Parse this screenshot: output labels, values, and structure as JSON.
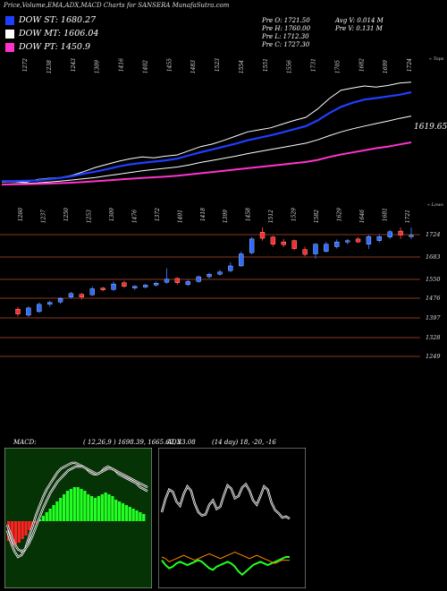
{
  "header": {
    "title": "Price,Volume,EMA,ADX,MACD Charts for SANSERA MunafaSutra.com",
    "legend": [
      {
        "label": "DOW ST: 1680.27",
        "color": "#1f3fff"
      },
      {
        "label": "DOW MT: 1606.04",
        "color": "#ffffff"
      },
      {
        "label": "DOW PT: 1450.9",
        "color": "#ff33cc"
      }
    ],
    "ohlc": {
      "open": "Pre   O: 1721.50",
      "high": "Pre   H: 1760.00",
      "low": "Pre   L: 1712.30",
      "close": "Pre   C: 1727.30",
      "avg_vol": "Avg V: 0.014  M",
      "prev_vol": "Pre   V: 0.131 M"
    }
  },
  "ema_panel": {
    "top_labels": [
      "1272",
      "1238",
      "1243",
      "1309",
      "1416",
      "1402",
      "1455",
      "1483",
      "1523",
      "1554",
      "1551",
      "1556",
      "1731",
      "1705",
      "1682",
      "1699",
      "1724"
    ],
    "corner_label": "« Tops",
    "last_value": "1619.65",
    "chart_data": {
      "type": "line",
      "series": [
        {
          "values": [
            1250,
            1252,
            1248,
            1262,
            1268,
            1272,
            1282,
            1300,
            1320,
            1335,
            1350,
            1362,
            1370,
            1366,
            1374,
            1380,
            1400,
            1420,
            1432,
            1450,
            1470,
            1490,
            1500,
            1510,
            1528,
            1545,
            1560,
            1600,
            1650,
            1690,
            1700,
            1710,
            1705,
            1712,
            1724,
            1728
          ],
          "color": "#ffffff"
        },
        {
          "values": [
            1255,
            1255,
            1256,
            1258,
            1264,
            1270,
            1278,
            1290,
            1300,
            1312,
            1325,
            1335,
            1342,
            1348,
            1354,
            1362,
            1378,
            1393,
            1406,
            1420,
            1434,
            1450,
            1462,
            1474,
            1488,
            1503,
            1518,
            1545,
            1580,
            1610,
            1630,
            1645,
            1652,
            1660,
            1668,
            1680
          ],
          "color": "#1f3fff"
        },
        {
          "values": [
            1240,
            1242,
            1244,
            1246,
            1250,
            1255,
            1260,
            1266,
            1272,
            1280,
            1288,
            1296,
            1304,
            1310,
            1316,
            1322,
            1332,
            1344,
            1354,
            1364,
            1374,
            1386,
            1396,
            1406,
            1416,
            1426,
            1436,
            1452,
            1472,
            1490,
            1505,
            1518,
            1530,
            1542,
            1555,
            1566
          ],
          "color": "#ffffff"
        },
        {
          "values": [
            1238,
            1239,
            1240,
            1241,
            1243,
            1245,
            1247,
            1250,
            1254,
            1258,
            1262,
            1266,
            1270,
            1273,
            1276,
            1280,
            1286,
            1292,
            1298,
            1304,
            1310,
            1316,
            1322,
            1328,
            1334,
            1340,
            1346,
            1356,
            1370,
            1382,
            1392,
            1402,
            1412,
            1420,
            1430,
            1440
          ],
          "color": "#ff33cc"
        }
      ]
    }
  },
  "candle_panel": {
    "top_labels": [
      "1260",
      "1237",
      "1250",
      "1253",
      "1309",
      "1476",
      "1372",
      "1401",
      "1418",
      "1399",
      "1458",
      "1512",
      "1529",
      "1582",
      "1629",
      "1646",
      "1681",
      "1721"
    ],
    "corner_label": "« Lows",
    "chart_data": {
      "type": "candlestick",
      "y_ticks": [
        1724,
        1683,
        1550,
        1476,
        1397,
        1328,
        1249
      ],
      "candles": [
        {
          "o": 1420,
          "c": 1400,
          "h": 1430,
          "l": 1390,
          "up": false
        },
        {
          "o": 1395,
          "c": 1425,
          "h": 1432,
          "l": 1388,
          "up": true
        },
        {
          "o": 1410,
          "c": 1440,
          "h": 1448,
          "l": 1405,
          "up": true
        },
        {
          "o": 1440,
          "c": 1448,
          "h": 1455,
          "l": 1430,
          "up": true
        },
        {
          "o": 1450,
          "c": 1465,
          "h": 1470,
          "l": 1442,
          "up": true
        },
        {
          "o": 1470,
          "c": 1485,
          "h": 1492,
          "l": 1463,
          "up": true
        },
        {
          "o": 1482,
          "c": 1470,
          "h": 1488,
          "l": 1460,
          "up": false
        },
        {
          "o": 1480,
          "c": 1505,
          "h": 1515,
          "l": 1475,
          "up": true
        },
        {
          "o": 1508,
          "c": 1500,
          "h": 1512,
          "l": 1494,
          "up": false
        },
        {
          "o": 1502,
          "c": 1525,
          "h": 1535,
          "l": 1496,
          "up": true
        },
        {
          "o": 1530,
          "c": 1515,
          "h": 1538,
          "l": 1508,
          "up": false
        },
        {
          "o": 1508,
          "c": 1515,
          "h": 1520,
          "l": 1500,
          "up": true
        },
        {
          "o": 1512,
          "c": 1520,
          "h": 1526,
          "l": 1506,
          "up": true
        },
        {
          "o": 1520,
          "c": 1528,
          "h": 1535,
          "l": 1514,
          "up": true
        },
        {
          "o": 1532,
          "c": 1545,
          "h": 1590,
          "l": 1526,
          "up": true
        },
        {
          "o": 1548,
          "c": 1530,
          "h": 1552,
          "l": 1522,
          "up": false
        },
        {
          "o": 1522,
          "c": 1535,
          "h": 1542,
          "l": 1516,
          "up": true
        },
        {
          "o": 1535,
          "c": 1555,
          "h": 1560,
          "l": 1530,
          "up": true
        },
        {
          "o": 1555,
          "c": 1565,
          "h": 1572,
          "l": 1548,
          "up": true
        },
        {
          "o": 1565,
          "c": 1575,
          "h": 1584,
          "l": 1560,
          "up": true
        },
        {
          "o": 1580,
          "c": 1600,
          "h": 1615,
          "l": 1574,
          "up": true
        },
        {
          "o": 1600,
          "c": 1650,
          "h": 1660,
          "l": 1596,
          "up": true
        },
        {
          "o": 1655,
          "c": 1712,
          "h": 1720,
          "l": 1648,
          "up": true
        },
        {
          "o": 1715,
          "c": 1740,
          "h": 1760,
          "l": 1705,
          "up": false
        },
        {
          "o": 1720,
          "c": 1690,
          "h": 1725,
          "l": 1680,
          "up": false
        },
        {
          "o": 1700,
          "c": 1688,
          "h": 1712,
          "l": 1678,
          "up": false
        },
        {
          "o": 1705,
          "c": 1672,
          "h": 1710,
          "l": 1665,
          "up": false
        },
        {
          "o": 1668,
          "c": 1648,
          "h": 1680,
          "l": 1640,
          "up": false
        },
        {
          "o": 1650,
          "c": 1690,
          "h": 1695,
          "l": 1630,
          "up": true
        },
        {
          "o": 1660,
          "c": 1690,
          "h": 1700,
          "l": 1655,
          "up": true
        },
        {
          "o": 1680,
          "c": 1700,
          "h": 1710,
          "l": 1672,
          "up": true
        },
        {
          "o": 1700,
          "c": 1705,
          "h": 1712,
          "l": 1690,
          "up": true
        },
        {
          "o": 1700,
          "c": 1712,
          "h": 1720,
          "l": 1695,
          "up": false
        },
        {
          "o": 1690,
          "c": 1722,
          "h": 1728,
          "l": 1670,
          "up": true
        },
        {
          "o": 1705,
          "c": 1722,
          "h": 1732,
          "l": 1698,
          "up": true
        },
        {
          "o": 1720,
          "c": 1742,
          "h": 1750,
          "l": 1712,
          "up": true
        },
        {
          "o": 1745,
          "c": 1728,
          "h": 1760,
          "l": 1712,
          "up": false
        },
        {
          "o": 1722,
          "c": 1727,
          "h": 1760,
          "l": 1712,
          "up": true
        }
      ]
    }
  },
  "macd_panel": {
    "label": "MACD:",
    "values": "( 12,26,9 ) 1698.39,  1665.62,  33.08",
    "chart_data": {
      "type": "bar",
      "histogram": [
        -22,
        -28,
        -26,
        -24,
        -20,
        -16,
        -10,
        -6,
        -2,
        2,
        6,
        10,
        14,
        18,
        22,
        26,
        30,
        34,
        36,
        38,
        38,
        36,
        34,
        30,
        28,
        26,
        28,
        30,
        32,
        30,
        28,
        24,
        22,
        20,
        18,
        16,
        14,
        12,
        10,
        8
      ],
      "macd_line": [
        -10,
        -22,
        -32,
        -38,
        -36,
        -30,
        -18,
        -6,
        6,
        16,
        26,
        34,
        40,
        46,
        52,
        56,
        58,
        60,
        62,
        62,
        60,
        58,
        56,
        52,
        50,
        50,
        52,
        56,
        58,
        56,
        54,
        50,
        48,
        46,
        44,
        42,
        40,
        36,
        34,
        32
      ],
      "signal_line": [
        -4,
        -14,
        -24,
        -30,
        -32,
        -30,
        -24,
        -16,
        -6,
        4,
        14,
        22,
        30,
        36,
        42,
        46,
        50,
        54,
        56,
        58,
        58,
        58,
        56,
        54,
        52,
        50,
        52,
        54,
        56,
        56,
        54,
        52,
        50,
        48,
        46,
        44,
        42,
        40,
        38,
        36
      ]
    }
  },
  "adx_panel": {
    "label": "ADX",
    "values": "(14  day) 18,  -20,  -16",
    "chart_data": {
      "type": "line",
      "series": [
        {
          "values": [
            30,
            55,
            72,
            68,
            50,
            42,
            64,
            78,
            70,
            46,
            30,
            24,
            26,
            44,
            52,
            36,
            40,
            62,
            80,
            74,
            56,
            60,
            76,
            82,
            70,
            52,
            44,
            60,
            78,
            72,
            48,
            34,
            28,
            20,
            22,
            18
          ],
          "color": "#ffffff"
        },
        {
          "values": [
            -16,
            -10,
            -6,
            -8,
            -12,
            -14,
            -12,
            -10,
            -12,
            -14,
            -16,
            -14,
            -10,
            -6,
            -4,
            -8,
            -10,
            -12,
            -14,
            -12,
            -8,
            -2,
            2,
            -2,
            -6,
            -10,
            -12,
            -14,
            -12,
            -10,
            -12,
            -14,
            -16,
            -18,
            -20,
            -20
          ],
          "color": "#22ff22"
        },
        {
          "values": [
            -20,
            -18,
            -14,
            -16,
            -18,
            -20,
            -22,
            -20,
            -18,
            -16,
            -18,
            -20,
            -22,
            -24,
            -22,
            -20,
            -18,
            -20,
            -22,
            -24,
            -26,
            -24,
            -22,
            -20,
            -18,
            -20,
            -22,
            -20,
            -18,
            -16,
            -14,
            -12,
            -14,
            -16,
            -16,
            -16
          ],
          "color": "#ff8800"
        }
      ]
    }
  }
}
